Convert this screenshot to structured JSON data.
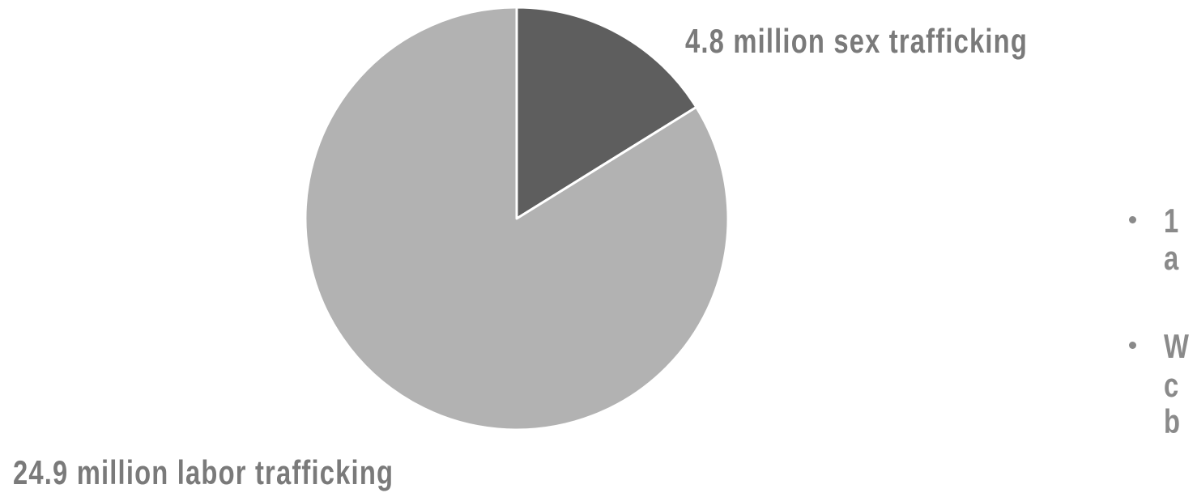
{
  "chart_data": {
    "type": "pie",
    "slices": [
      {
        "label": "4.8 million sex trafficking",
        "value": 4.8,
        "color": "#5e5e5e"
      },
      {
        "label": "24.9 million labor trafficking",
        "value": 24.9,
        "color": "#b2b2b2"
      }
    ],
    "slice_border_color": "#ffffff",
    "label_color": "#7a7a7a"
  },
  "bullets": [
    {
      "lines": [
        "1",
        "a"
      ]
    },
    {
      "lines": [
        "W",
        "c",
        "b"
      ]
    }
  ]
}
